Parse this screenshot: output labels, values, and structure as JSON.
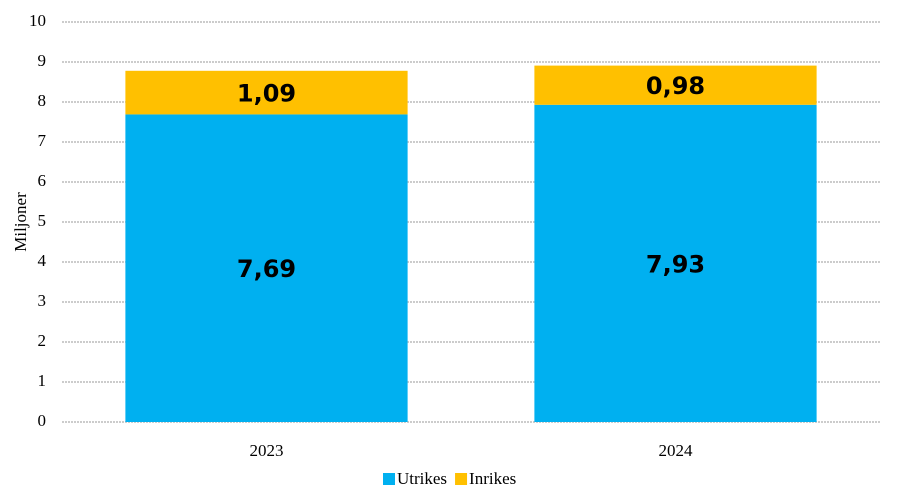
{
  "chart_data": {
    "type": "stacked_bar",
    "y_label": "Miljoner",
    "categories": [
      "2023",
      "2024"
    ],
    "series": [
      {
        "name": "Utrikes",
        "color": "#00b0f0",
        "values": [
          7.69,
          7.93
        ],
        "value_labels": [
          "7,69",
          "7,93"
        ]
      },
      {
        "name": "Inrikes",
        "color": "#ffc000",
        "values": [
          1.09,
          0.98
        ],
        "value_labels": [
          "1,09",
          "0,98"
        ]
      }
    ],
    "ylim": [
      0,
      10
    ],
    "yticks": [
      0,
      1,
      2,
      3,
      4,
      5,
      6,
      7,
      8,
      9,
      10
    ],
    "grid": true,
    "legend": "bottom"
  }
}
